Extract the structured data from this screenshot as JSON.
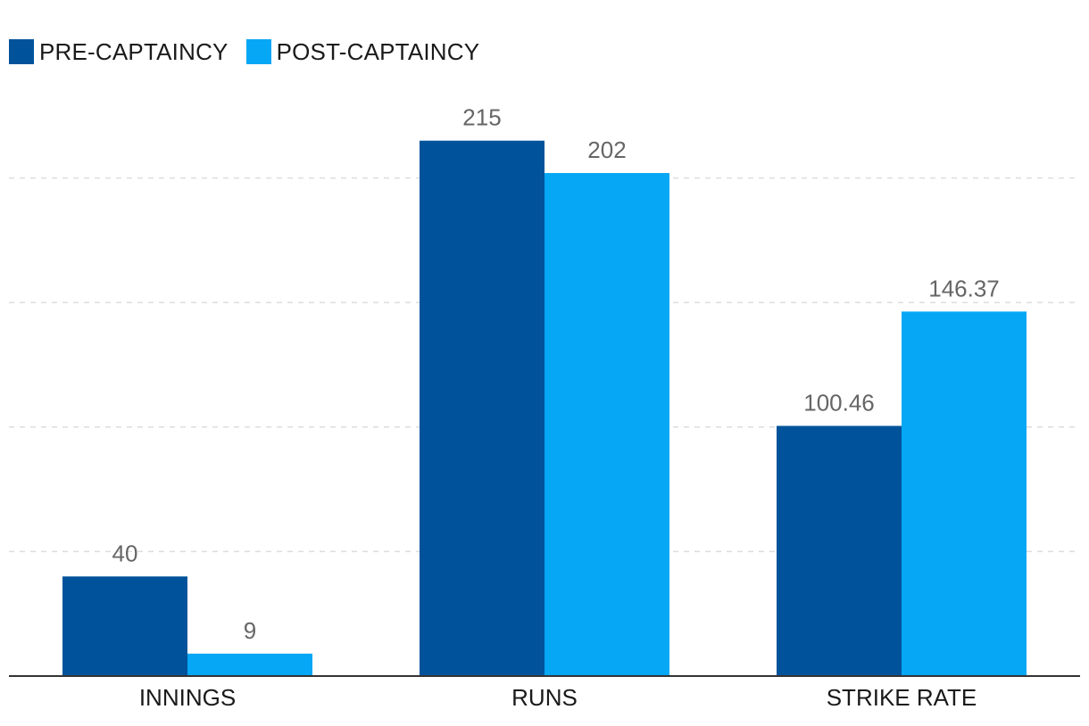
{
  "colors": {
    "pre": "#00539b",
    "post": "#06a7f4",
    "grid": "#dddddd",
    "axis": "#333333"
  },
  "legend": {
    "items": [
      {
        "label": "PRE-CAPTAINCY",
        "color": "#00539b"
      },
      {
        "label": "POST-CAPTAINCY",
        "color": "#06a7f4"
      }
    ]
  },
  "chart_data": {
    "type": "bar",
    "title": "",
    "xlabel": "",
    "ylabel": "",
    "categories": [
      "INNINGS",
      "RUNS",
      "STRIKE RATE"
    ],
    "series": [
      {
        "name": "PRE-CAPTAINCY",
        "values": [
          40,
          215,
          100.46
        ],
        "labels": [
          "40",
          "215",
          "100.46"
        ],
        "color": "#00539b"
      },
      {
        "name": "POST-CAPTAINCY",
        "values": [
          9,
          202,
          146.37
        ],
        "labels": [
          "9",
          "202",
          "146.37"
        ],
        "color": "#06a7f4"
      }
    ],
    "ylim": [
      0,
      250
    ],
    "gridlines": [
      50,
      100,
      150,
      200
    ],
    "grid": true,
    "legend_position": "top-left"
  }
}
